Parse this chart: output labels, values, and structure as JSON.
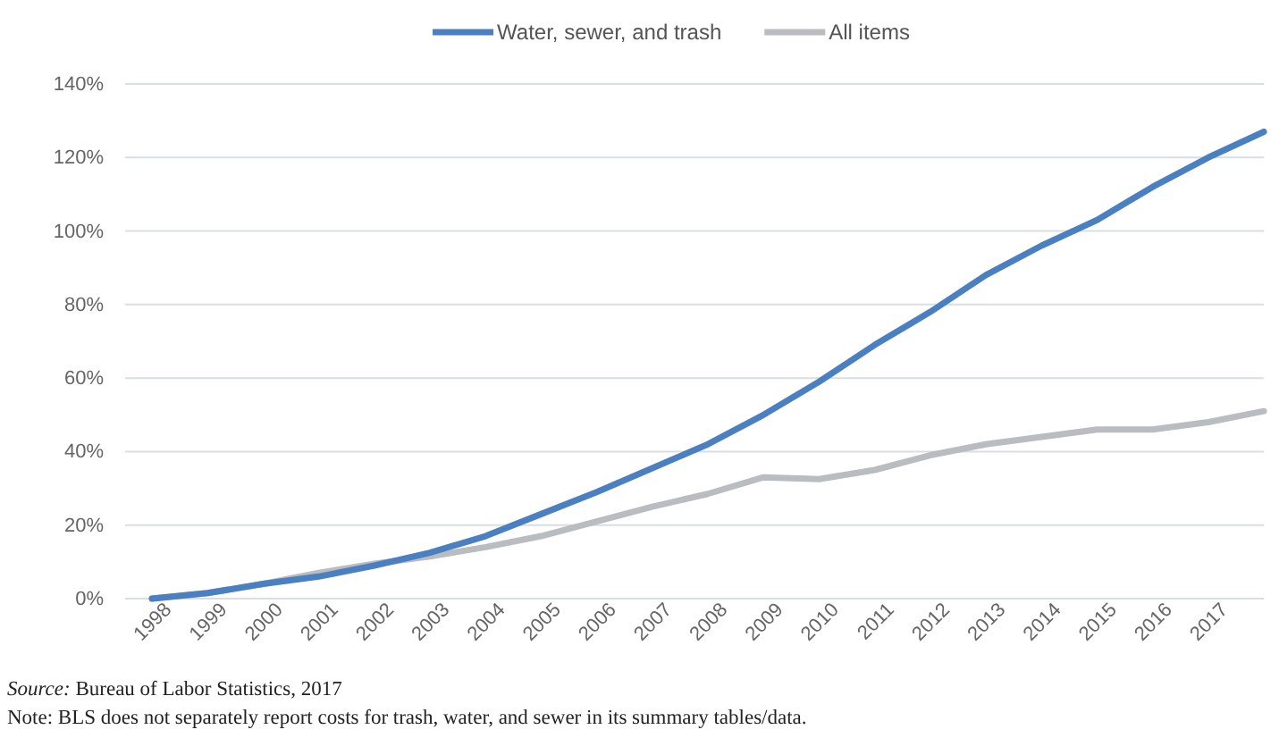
{
  "chart_data": {
    "type": "line",
    "categories": [
      "1998",
      "1999",
      "2000",
      "2001",
      "2002",
      "2003",
      "2004",
      "2005",
      "2006",
      "2007",
      "2008",
      "2009",
      "2010",
      "2011",
      "2012",
      "2013",
      "2014",
      "2015",
      "2016",
      "2017",
      null
    ],
    "series": [
      {
        "name": "Water, sewer, and trash",
        "color": "#4a7fc1",
        "values": [
          0,
          1.5,
          4,
          6,
          9,
          12.5,
          17,
          23,
          29,
          35.5,
          42,
          50,
          59,
          69,
          78,
          88,
          96,
          103,
          112,
          120,
          127
        ]
      },
      {
        "name": "All items",
        "color": "#b9bcc0",
        "values": [
          0,
          1.5,
          4,
          7,
          9.5,
          11.5,
          14,
          17,
          21,
          25,
          28.5,
          33,
          32.5,
          35,
          39,
          42,
          44,
          46,
          46,
          48,
          51
        ]
      }
    ],
    "ylim": [
      0,
      140
    ],
    "yticks": [
      {
        "value": 0,
        "label": "0%"
      },
      {
        "value": 20,
        "label": "20%"
      },
      {
        "value": 40,
        "label": "40%"
      },
      {
        "value": 60,
        "label": "60%"
      },
      {
        "value": 80,
        "label": "80%"
      },
      {
        "value": 100,
        "label": "100%"
      },
      {
        "value": 120,
        "label": "120%"
      },
      {
        "value": 140,
        "label": "140%"
      }
    ],
    "grid": "y",
    "legend": "top",
    "marker": "none",
    "line_style": "solid",
    "annotations": [
      "Source: Bureau of Labor Statistics, 2017",
      "Note: BLS does not separately report costs for trash, water, and sewer in its summary tables/data."
    ]
  }
}
